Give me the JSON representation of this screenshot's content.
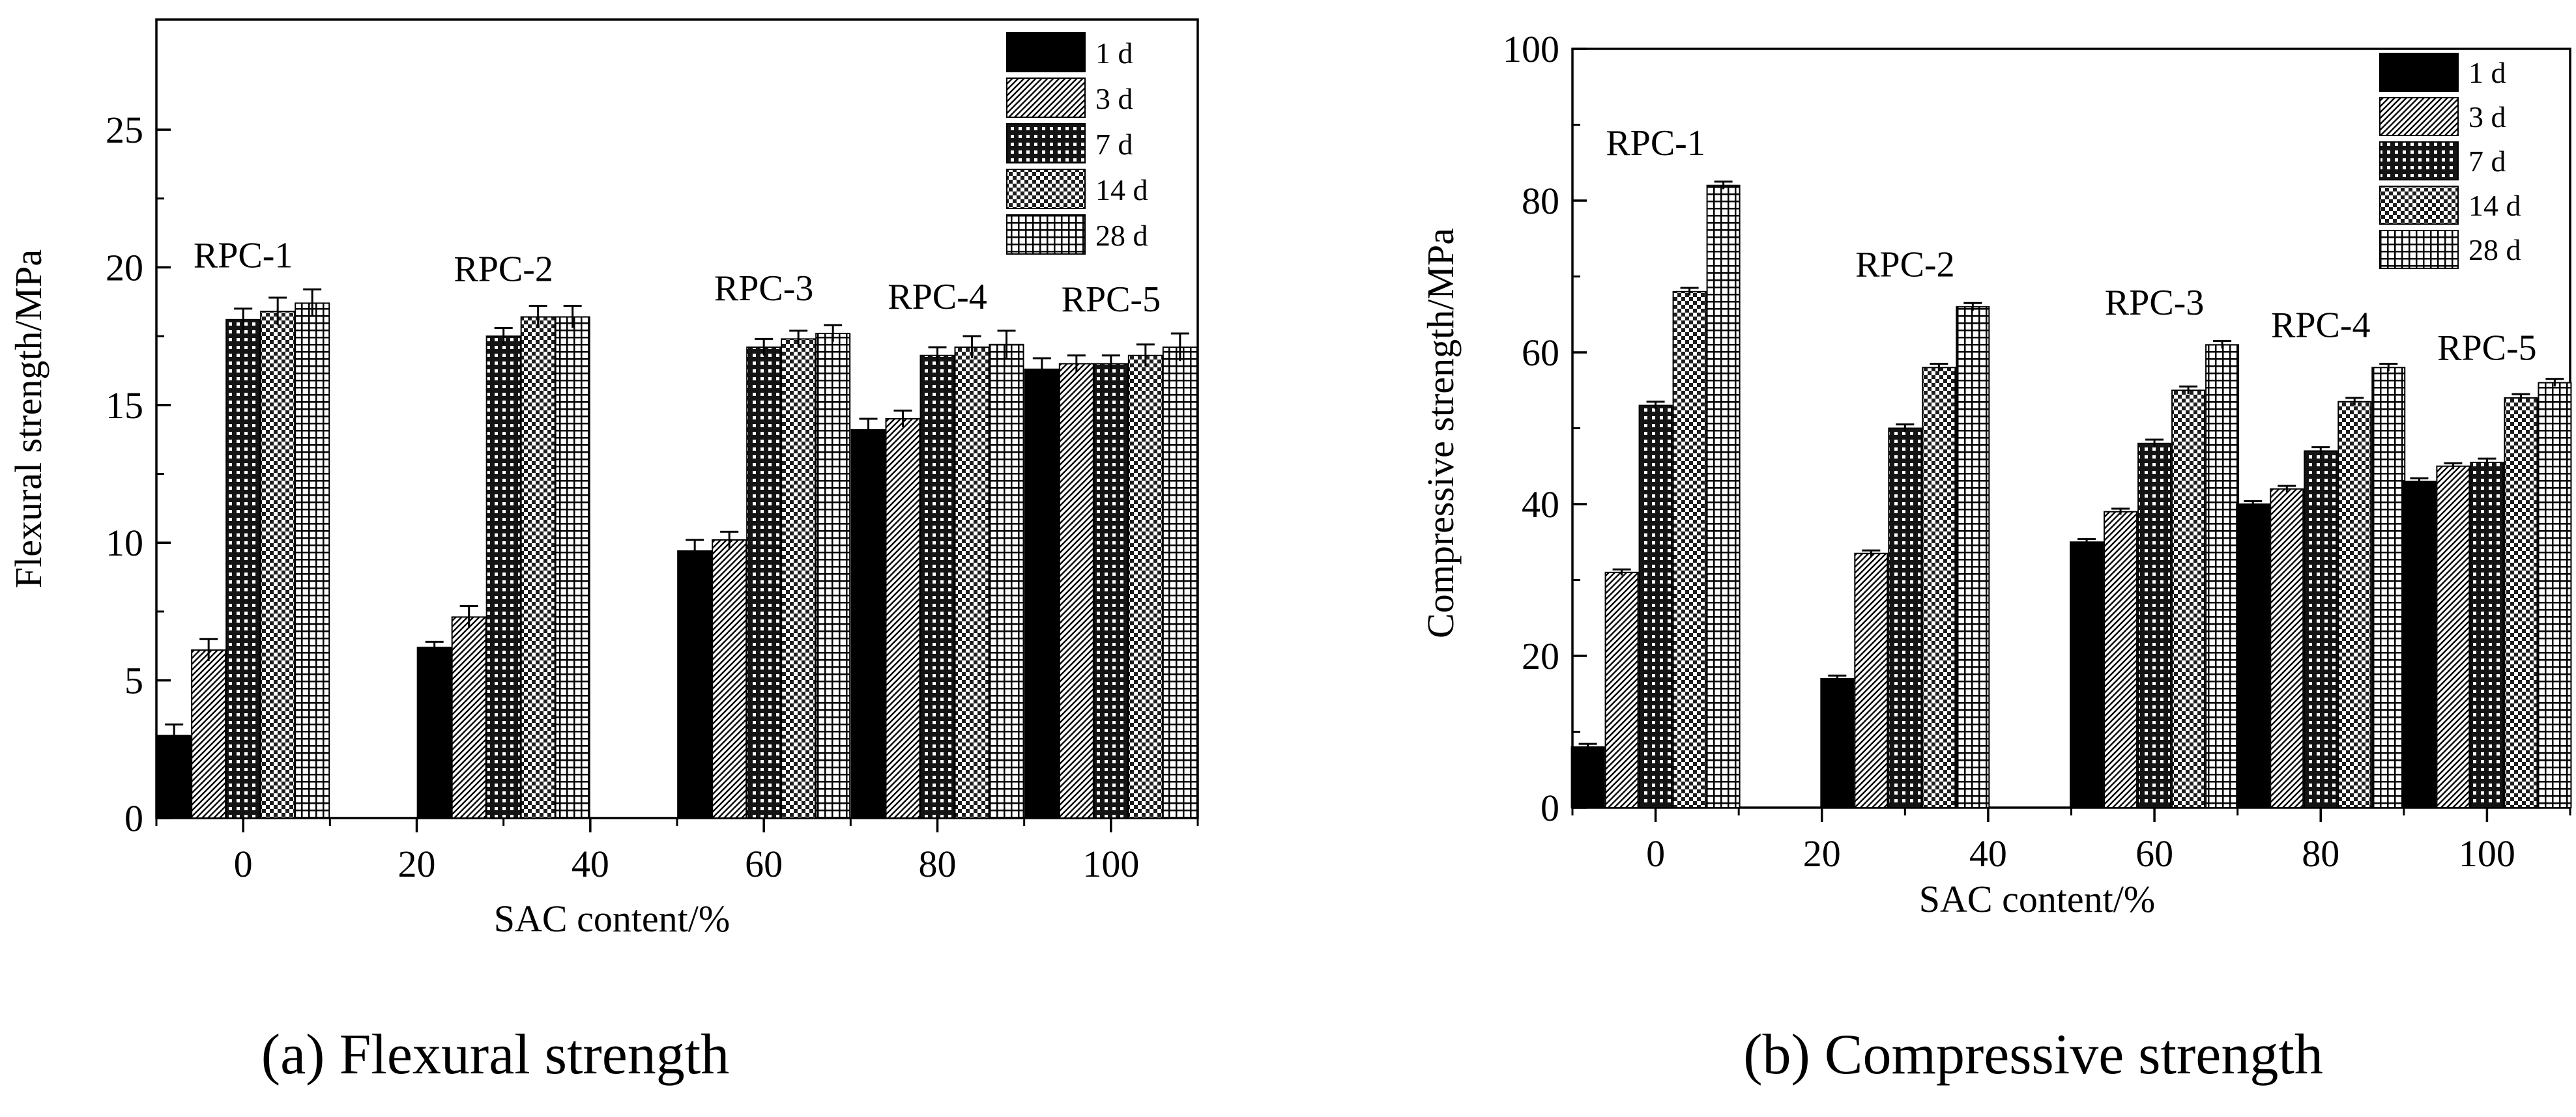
{
  "legend_items": [
    "1 d",
    "3 d",
    "7 d",
    "14 d",
    "28 d"
  ],
  "chart_data": [
    {
      "type": "bar",
      "id": "flexural",
      "caption": "(a)  Flexural strength",
      "xlabel": "SAC content/%",
      "ylabel": "Flexural strength/MPa",
      "ylim": [
        0,
        29
      ],
      "yticks": [
        0,
        5,
        10,
        15,
        20,
        25
      ],
      "ytick_labels": [
        "0",
        "5",
        "10",
        "15",
        "20",
        "25"
      ],
      "xticks": [
        0,
        20,
        40,
        60,
        80,
        100
      ],
      "xtick_labels": [
        "0",
        "20",
        "40",
        "60",
        "80",
        "100"
      ],
      "xlim": [
        -10,
        110
      ],
      "group_centers": [
        0,
        30,
        60,
        80,
        100
      ],
      "group_labels": [
        "RPC-1",
        "RPC-2",
        "RPC-3",
        "RPC-4",
        "RPC-5"
      ],
      "group_label_y": [
        20.0,
        19.5,
        18.8,
        18.5,
        18.4
      ],
      "legend": [
        "1 d",
        "3 d",
        "7 d",
        "14 d",
        "28 d"
      ],
      "series": [
        {
          "name": "1 d",
          "values": [
            3.0,
            6.2,
            9.7,
            14.1,
            16.3
          ],
          "errors": [
            0.4,
            0.2,
            0.4,
            0.4,
            0.4
          ]
        },
        {
          "name": "3 d",
          "values": [
            6.1,
            7.3,
            10.1,
            14.5,
            16.5
          ],
          "errors": [
            0.4,
            0.4,
            0.3,
            0.3,
            0.3
          ]
        },
        {
          "name": "7 d",
          "values": [
            18.1,
            17.5,
            17.1,
            16.8,
            16.5
          ],
          "errors": [
            0.4,
            0.3,
            0.3,
            0.3,
            0.3
          ]
        },
        {
          "name": "14 d",
          "values": [
            18.4,
            18.2,
            17.4,
            17.1,
            16.8
          ],
          "errors": [
            0.5,
            0.4,
            0.3,
            0.4,
            0.4
          ]
        },
        {
          "name": "28 d",
          "values": [
            18.7,
            18.2,
            17.6,
            17.2,
            17.1
          ],
          "errors": [
            0.5,
            0.4,
            0.3,
            0.5,
            0.5
          ]
        }
      ]
    },
    {
      "type": "bar",
      "id": "compressive",
      "caption": "(b)  Compressive strength",
      "xlabel": "SAC content/%",
      "ylabel": "Compressive strength/MPa",
      "ylim": [
        0,
        100
      ],
      "yticks": [
        0,
        20,
        40,
        60,
        80,
        100
      ],
      "ytick_labels": [
        "0",
        "20",
        "40",
        "60",
        "80",
        "100"
      ],
      "xticks": [
        0,
        20,
        40,
        60,
        80,
        100
      ],
      "xtick_labels": [
        "0",
        "20",
        "40",
        "60",
        "80",
        "100"
      ],
      "xlim": [
        -10,
        110
      ],
      "group_centers": [
        0,
        30,
        60,
        80,
        100
      ],
      "group_labels": [
        "RPC-1",
        "RPC-2",
        "RPC-3",
        "RPC-4",
        "RPC-5"
      ],
      "group_label_y": [
        86,
        70,
        65,
        62,
        59
      ],
      "legend": [
        "1 d",
        "3 d",
        "7 d",
        "14 d",
        "28 d"
      ],
      "series": [
        {
          "name": "1 d",
          "values": [
            8,
            17,
            35,
            40,
            43
          ],
          "errors": [
            0.4,
            0.4,
            0.4,
            0.4,
            0.4
          ]
        },
        {
          "name": "3 d",
          "values": [
            31,
            33.5,
            39,
            42,
            45
          ],
          "errors": [
            0.4,
            0.4,
            0.4,
            0.4,
            0.4
          ]
        },
        {
          "name": "7 d",
          "values": [
            53,
            50,
            48,
            47,
            45.5
          ],
          "errors": [
            0.5,
            0.5,
            0.5,
            0.5,
            0.5
          ]
        },
        {
          "name": "14 d",
          "values": [
            68,
            58,
            55,
            53.5,
            54
          ],
          "errors": [
            0.5,
            0.5,
            0.5,
            0.5,
            0.5
          ]
        },
        {
          "name": "28 d",
          "values": [
            82,
            66,
            61,
            58,
            56
          ],
          "errors": [
            0.5,
            0.5,
            0.5,
            0.5,
            0.5
          ]
        }
      ]
    }
  ]
}
